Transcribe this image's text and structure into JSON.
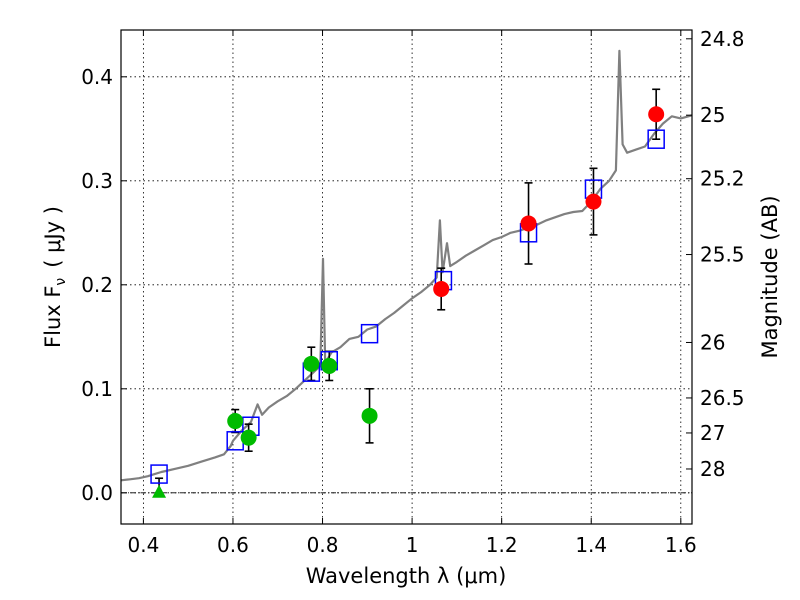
{
  "chart_data": {
    "type": "scatter",
    "xlabel": "Wavelength  λ (μm)",
    "ylabel": "Flux  F",
    "ylabel_sub": "ν",
    "ylabel_units": "( μJy )",
    "y2label": "Magnitude (AB)",
    "xlim": [
      0.35,
      1.625
    ],
    "ylim": [
      -0.03,
      0.445
    ],
    "grid": true,
    "x_ticks": [
      "0.4",
      "0.6",
      "0.8",
      "1",
      "1.2",
      "1.4",
      "1.6"
    ],
    "x_tick_values": [
      0.4,
      0.6,
      0.8,
      1.0,
      1.2,
      1.4,
      1.6
    ],
    "y_ticks": [
      "0.0",
      "0.1",
      "0.2",
      "0.3",
      "0.4"
    ],
    "y_tick_values": [
      0.0,
      0.1,
      0.2,
      0.3,
      0.4
    ],
    "y2_ticks": [
      "24.8",
      "25",
      "25.2",
      "25.5",
      "26",
      "26.5",
      "27",
      "28"
    ],
    "y2_tick_mags": [
      24.8,
      25.0,
      25.2,
      25.5,
      26.0,
      26.5,
      27.0,
      28.0
    ],
    "colors": {
      "model": "#808080",
      "model_photometry": "#0000ff",
      "ground": "#00bb00",
      "space": "#ff0000",
      "errorbar": "#000000"
    },
    "model_spectrum": [
      [
        0.35,
        0.012
      ],
      [
        0.37,
        0.013
      ],
      [
        0.39,
        0.014
      ],
      [
        0.41,
        0.016
      ],
      [
        0.425,
        0.018
      ],
      [
        0.44,
        0.02
      ],
      [
        0.45,
        0.021
      ],
      [
        0.47,
        0.023
      ],
      [
        0.5,
        0.026
      ],
      [
        0.53,
        0.03
      ],
      [
        0.56,
        0.034
      ],
      [
        0.58,
        0.037
      ],
      [
        0.595,
        0.045
      ],
      [
        0.6,
        0.05
      ],
      [
        0.62,
        0.06
      ],
      [
        0.64,
        0.068
      ],
      [
        0.655,
        0.085
      ],
      [
        0.665,
        0.075
      ],
      [
        0.68,
        0.082
      ],
      [
        0.7,
        0.088
      ],
      [
        0.72,
        0.093
      ],
      [
        0.74,
        0.1
      ],
      [
        0.76,
        0.108
      ],
      [
        0.78,
        0.116
      ],
      [
        0.795,
        0.122
      ],
      [
        0.801,
        0.225
      ],
      [
        0.806,
        0.125
      ],
      [
        0.82,
        0.135
      ],
      [
        0.84,
        0.14
      ],
      [
        0.86,
        0.148
      ],
      [
        0.88,
        0.15
      ],
      [
        0.9,
        0.157
      ],
      [
        0.92,
        0.16
      ],
      [
        0.94,
        0.167
      ],
      [
        0.96,
        0.173
      ],
      [
        0.98,
        0.18
      ],
      [
        1.0,
        0.187
      ],
      [
        1.02,
        0.193
      ],
      [
        1.04,
        0.2
      ],
      [
        1.055,
        0.207
      ],
      [
        1.062,
        0.262
      ],
      [
        1.068,
        0.212
      ],
      [
        1.078,
        0.24
      ],
      [
        1.085,
        0.218
      ],
      [
        1.1,
        0.222
      ],
      [
        1.12,
        0.228
      ],
      [
        1.14,
        0.233
      ],
      [
        1.16,
        0.238
      ],
      [
        1.18,
        0.243
      ],
      [
        1.2,
        0.246
      ],
      [
        1.22,
        0.25
      ],
      [
        1.24,
        0.252
      ],
      [
        1.26,
        0.255
      ],
      [
        1.28,
        0.258
      ],
      [
        1.3,
        0.262
      ],
      [
        1.32,
        0.265
      ],
      [
        1.34,
        0.268
      ],
      [
        1.36,
        0.27
      ],
      [
        1.38,
        0.271
      ],
      [
        1.4,
        0.28
      ],
      [
        1.42,
        0.292
      ],
      [
        1.44,
        0.3
      ],
      [
        1.455,
        0.31
      ],
      [
        1.463,
        0.425
      ],
      [
        1.47,
        0.335
      ],
      [
        1.48,
        0.327
      ],
      [
        1.5,
        0.33
      ],
      [
        1.52,
        0.333
      ],
      [
        1.54,
        0.345
      ],
      [
        1.56,
        0.355
      ],
      [
        1.58,
        0.362
      ],
      [
        1.6,
        0.36
      ],
      [
        1.625,
        0.363
      ]
    ],
    "model_photometry": [
      {
        "x": 0.435,
        "y": 0.018
      },
      {
        "x": 0.605,
        "y": 0.05
      },
      {
        "x": 0.64,
        "y": 0.064
      },
      {
        "x": 0.775,
        "y": 0.116
      },
      {
        "x": 0.815,
        "y": 0.127
      },
      {
        "x": 0.905,
        "y": 0.153
      },
      {
        "x": 1.07,
        "y": 0.204
      },
      {
        "x": 1.26,
        "y": 0.25
      },
      {
        "x": 1.405,
        "y": 0.292
      },
      {
        "x": 1.545,
        "y": 0.34
      }
    ],
    "ground_photometry": [
      {
        "x": 0.605,
        "y": 0.069,
        "yerr": 0.011
      },
      {
        "x": 0.635,
        "y": 0.053,
        "yerr": 0.013
      },
      {
        "x": 0.775,
        "y": 0.124,
        "yerr": 0.016
      },
      {
        "x": 0.815,
        "y": 0.122,
        "yerr": 0.014
      },
      {
        "x": 0.905,
        "y": 0.074,
        "yerr": 0.026
      }
    ],
    "space_photometry": [
      {
        "x": 1.065,
        "y": 0.196,
        "yerr": 0.02
      },
      {
        "x": 1.26,
        "y": 0.259,
        "yerr": 0.039
      },
      {
        "x": 1.405,
        "y": 0.28,
        "yerr": 0.032
      },
      {
        "x": 1.545,
        "y": 0.364,
        "yerr": 0.024
      }
    ],
    "upper_limit": {
      "x": 0.435,
      "y": 0.0,
      "ytop": 0.014
    }
  }
}
